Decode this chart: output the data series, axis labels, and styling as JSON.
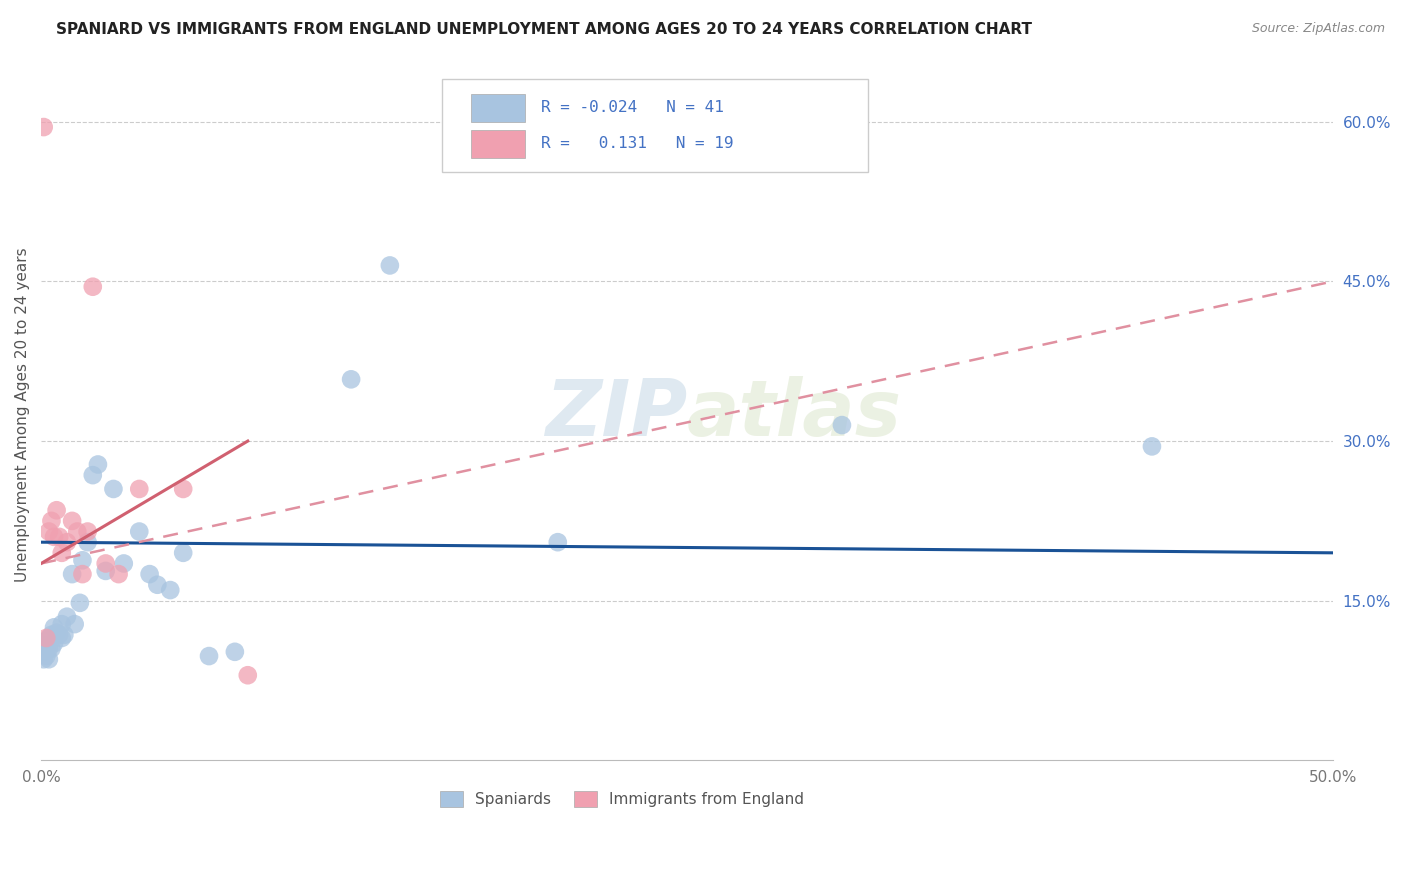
{
  "title": "SPANIARD VS IMMIGRANTS FROM ENGLAND UNEMPLOYMENT AMONG AGES 20 TO 24 YEARS CORRELATION CHART",
  "source": "Source: ZipAtlas.com",
  "ylabel": "Unemployment Among Ages 20 to 24 years",
  "xlim": [
    0.0,
    0.5
  ],
  "ylim": [
    0.0,
    0.65
  ],
  "xticks": [
    0.0,
    0.1,
    0.2,
    0.3,
    0.4,
    0.5
  ],
  "xticklabels": [
    "0.0%",
    "",
    "",
    "",
    "",
    "50.0%"
  ],
  "yticks_right": [
    0.15,
    0.3,
    0.45,
    0.6
  ],
  "yticklabels_right": [
    "15.0%",
    "30.0%",
    "45.0%",
    "60.0%"
  ],
  "legend_labels": [
    "Spaniards",
    "Immigrants from England"
  ],
  "blue_color": "#a8c4e0",
  "pink_color": "#f0a0b0",
  "blue_line_color": "#1a5296",
  "pink_line_color": "#d06070",
  "pink_line_color_dashed": "#e090a0",
  "watermark": "ZIPatlas",
  "r_blue": "-0.024",
  "n_blue": "41",
  "r_pink": "0.131",
  "n_pink": "19",
  "blue_line_x0": 0.0,
  "blue_line_y0": 0.205,
  "blue_line_x1": 0.5,
  "blue_line_y1": 0.195,
  "pink_line_solid_x0": 0.0,
  "pink_line_solid_y0": 0.185,
  "pink_line_solid_x1": 0.08,
  "pink_line_solid_y1": 0.3,
  "pink_line_dashed_x0": 0.0,
  "pink_line_dashed_y0": 0.185,
  "pink_line_dashed_x1": 0.5,
  "pink_line_dashed_y1": 0.45,
  "spaniards_x": [
    0.001,
    0.001,
    0.001,
    0.002,
    0.002,
    0.002,
    0.003,
    0.003,
    0.003,
    0.004,
    0.004,
    0.005,
    0.005,
    0.006,
    0.007,
    0.008,
    0.008,
    0.009,
    0.01,
    0.012,
    0.013,
    0.015,
    0.016,
    0.018,
    0.02,
    0.022,
    0.025,
    0.028,
    0.032,
    0.038,
    0.042,
    0.045,
    0.05,
    0.055,
    0.065,
    0.075,
    0.12,
    0.135,
    0.2,
    0.31,
    0.43
  ],
  "spaniards_y": [
    0.095,
    0.102,
    0.108,
    0.098,
    0.105,
    0.112,
    0.095,
    0.105,
    0.115,
    0.105,
    0.118,
    0.11,
    0.125,
    0.12,
    0.118,
    0.115,
    0.128,
    0.118,
    0.135,
    0.175,
    0.128,
    0.148,
    0.188,
    0.205,
    0.268,
    0.278,
    0.178,
    0.255,
    0.185,
    0.215,
    0.175,
    0.165,
    0.16,
    0.195,
    0.098,
    0.102,
    0.358,
    0.465,
    0.205,
    0.315,
    0.295
  ],
  "england_x": [
    0.001,
    0.002,
    0.003,
    0.004,
    0.005,
    0.006,
    0.007,
    0.008,
    0.01,
    0.012,
    0.014,
    0.016,
    0.018,
    0.02,
    0.025,
    0.03,
    0.038,
    0.055,
    0.08
  ],
  "england_y": [
    0.595,
    0.115,
    0.215,
    0.225,
    0.21,
    0.235,
    0.21,
    0.195,
    0.205,
    0.225,
    0.215,
    0.175,
    0.215,
    0.445,
    0.185,
    0.175,
    0.255,
    0.255,
    0.08
  ]
}
